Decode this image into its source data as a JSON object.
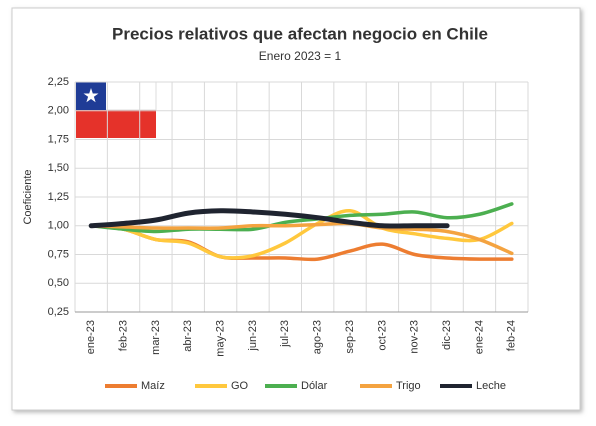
{
  "chart_data": {
    "type": "line",
    "title": "Precios relativos que afectan negocio en Chile",
    "subtitle": "Enero 2023 = 1",
    "y_label": "Coeficiente",
    "categories": [
      "ene-23",
      "feb-23",
      "mar-23",
      "abr-23",
      "may-23",
      "jun-23",
      "jul-23",
      "ago-23",
      "sep-23",
      "oct-23",
      "nov-23",
      "dic-23",
      "ene-24",
      "feb-24"
    ],
    "series": [
      {
        "name": "Maíz",
        "color": "#ed7d31",
        "values": [
          1.0,
          0.97,
          0.88,
          0.86,
          0.73,
          0.72,
          0.72,
          0.71,
          0.78,
          0.84,
          0.75,
          0.72,
          0.71,
          0.71
        ]
      },
      {
        "name": "GO",
        "color": "#ffc83d",
        "values": [
          1.0,
          0.97,
          0.88,
          0.85,
          0.73,
          0.74,
          0.85,
          1.02,
          1.13,
          0.98,
          0.93,
          0.89,
          0.88,
          1.02
        ]
      },
      {
        "name": "Dólar",
        "color": "#4caf50",
        "values": [
          1.0,
          0.97,
          0.95,
          0.97,
          0.97,
          0.97,
          1.03,
          1.06,
          1.09,
          1.1,
          1.12,
          1.07,
          1.1,
          1.19
        ]
      },
      {
        "name": "Trigo",
        "color": "#f4a340",
        "values": [
          1.0,
          0.99,
          0.98,
          0.98,
          0.98,
          1.0,
          1.0,
          1.01,
          1.02,
          0.98,
          0.97,
          0.95,
          0.88,
          0.76
        ]
      },
      {
        "name": "Leche",
        "color": "#1f2430",
        "values": [
          1.0,
          1.02,
          1.05,
          1.11,
          1.13,
          1.12,
          1.1,
          1.07,
          1.03,
          1.0,
          1.0,
          1.0,
          null,
          null
        ]
      }
    ],
    "ylim": [
      0.25,
      2.25
    ],
    "yticks": [
      {
        "value": 0.25,
        "label": "0,25"
      },
      {
        "value": 0.5,
        "label": "0,50"
      },
      {
        "value": 0.75,
        "label": "0,75"
      },
      {
        "value": 1,
        "label": "1,00"
      },
      {
        "value": 1.25,
        "label": "1,25"
      },
      {
        "value": 1.5,
        "label": "1,50"
      },
      {
        "value": 1.75,
        "label": "1,75"
      },
      {
        "value": 2,
        "label": "2,00"
      },
      {
        "value": 2.25,
        "label": "2,25"
      }
    ],
    "grid": true,
    "legend": "bottom"
  }
}
